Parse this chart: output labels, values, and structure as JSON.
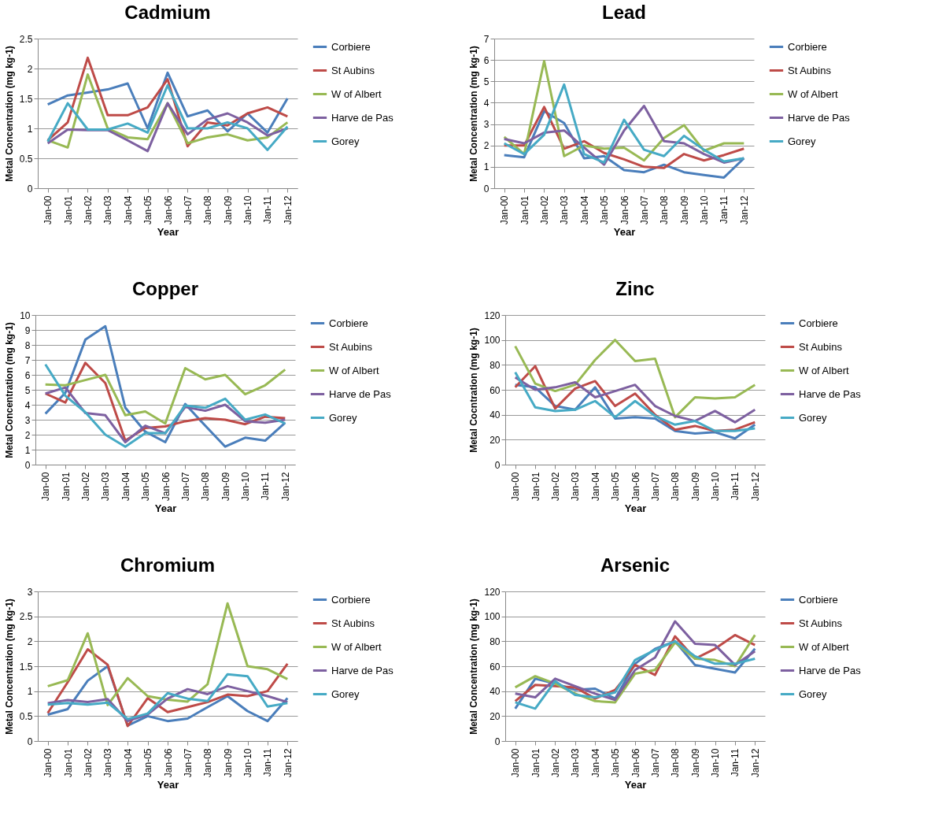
{
  "chart_data": [
    {
      "type": "line",
      "title": "Cadmium",
      "xlabel": "Year",
      "ylabel": "Metal Concentration (mg kg-1)",
      "categories": [
        "Jan-00",
        "Jan-01",
        "Jan-02",
        "Jan-03",
        "Jan-04",
        "Jan-05",
        "Jan-06",
        "Jan-07",
        "Jan-08",
        "Jan-09",
        "Jan-10",
        "Jan-11",
        "Jan-12"
      ],
      "ylim": [
        0,
        2.5
      ],
      "yticks": [
        0,
        0.5,
        1,
        1.5,
        2,
        2.5
      ],
      "grid": "y",
      "legend": "right",
      "series": [
        {
          "name": "Corbiere",
          "color": "#4a7ebb",
          "values": [
            1.4,
            1.55,
            1.6,
            1.65,
            1.75,
            1.0,
            1.93,
            1.2,
            1.3,
            0.95,
            1.25,
            0.93,
            1.5
          ]
        },
        {
          "name": "St Aubins",
          "color": "#be4b48",
          "values": [
            0.8,
            1.1,
            2.18,
            1.22,
            1.22,
            1.35,
            1.82,
            0.7,
            1.1,
            1.05,
            1.25,
            1.35,
            1.2
          ]
        },
        {
          "name": "W of Albert",
          "color": "#98b954",
          "values": [
            0.8,
            0.68,
            1.9,
            1.0,
            0.85,
            0.82,
            1.42,
            0.75,
            0.85,
            0.9,
            0.8,
            0.85,
            1.1
          ]
        },
        {
          "name": "Harve de Pas",
          "color": "#7d60a0",
          "values": [
            0.75,
            0.98,
            0.97,
            0.97,
            0.8,
            0.62,
            1.42,
            0.9,
            1.15,
            1.25,
            1.1,
            0.88,
            1.0
          ]
        },
        {
          "name": "Gorey",
          "color": "#46aac5",
          "values": [
            0.78,
            1.42,
            0.98,
            0.98,
            1.08,
            0.93,
            1.72,
            1.0,
            1.0,
            1.1,
            1.0,
            0.64,
            1.03
          ]
        }
      ]
    },
    {
      "type": "line",
      "title": "Lead",
      "xlabel": "Year",
      "ylabel": "Metal Concentration (mg kg-1)",
      "categories": [
        "Jan-00",
        "Jan-01",
        "Jan-02",
        "Jan-03",
        "Jan-04",
        "Jan-05",
        "Jan-06",
        "Jan-07",
        "Jan-08",
        "Jan-09",
        "Jan-10",
        "Jan-11",
        "Jan-12"
      ],
      "ylim": [
        0,
        7
      ],
      "yticks": [
        0,
        1,
        2,
        3,
        4,
        5,
        6,
        7
      ],
      "grid": "y",
      "legend": "right",
      "series": [
        {
          "name": "Corbiere",
          "color": "#4a7ebb",
          "values": [
            1.55,
            1.45,
            3.6,
            3.05,
            1.4,
            1.5,
            0.85,
            0.75,
            1.1,
            0.75,
            0.62,
            0.5,
            1.4
          ]
        },
        {
          "name": "St Aubins",
          "color": "#be4b48",
          "values": [
            2.0,
            2.0,
            3.8,
            1.85,
            2.2,
            1.65,
            1.35,
            1.0,
            0.95,
            1.6,
            1.3,
            1.55,
            1.85
          ]
        },
        {
          "name": "W of Albert",
          "color": "#98b954",
          "values": [
            2.4,
            1.6,
            5.95,
            1.5,
            2.0,
            1.85,
            1.9,
            1.3,
            2.35,
            2.95,
            1.75,
            2.1,
            2.1
          ]
        },
        {
          "name": "Harve de Pas",
          "color": "#7d60a0",
          "values": [
            2.3,
            2.1,
            2.6,
            2.7,
            1.9,
            1.1,
            2.7,
            3.85,
            2.2,
            2.1,
            1.6,
            1.2,
            1.4
          ]
        },
        {
          "name": "Gorey",
          "color": "#46aac5",
          "values": [
            2.1,
            1.6,
            2.5,
            4.85,
            1.6,
            1.2,
            3.2,
            1.8,
            1.5,
            2.45,
            1.8,
            1.25,
            1.4
          ]
        }
      ]
    },
    {
      "type": "line",
      "title": "Copper",
      "xlabel": "Year",
      "ylabel": "Metal Concentration (mg kg-1)",
      "categories": [
        "Jan-00",
        "Jan-01",
        "Jan-02",
        "Jan-03",
        "Jan-04",
        "Jan-05",
        "Jan-06",
        "Jan-07",
        "Jan-08",
        "Jan-09",
        "Jan-10",
        "Jan-11",
        "Jan-12"
      ],
      "ylim": [
        0,
        10
      ],
      "yticks": [
        0,
        1,
        2,
        3,
        4,
        5,
        6,
        7,
        8,
        9,
        10
      ],
      "grid": "y",
      "legend": "right",
      "series": [
        {
          "name": "Corbiere",
          "color": "#4a7ebb",
          "values": [
            3.4,
            4.8,
            8.35,
            9.25,
            3.8,
            2.2,
            1.5,
            4.05,
            2.6,
            1.2,
            1.8,
            1.6,
            2.8
          ]
        },
        {
          "name": "St Aubins",
          "color": "#be4b48",
          "values": [
            4.75,
            4.15,
            6.8,
            5.45,
            1.6,
            2.45,
            2.55,
            2.9,
            3.1,
            3.0,
            2.7,
            3.2,
            3.1
          ]
        },
        {
          "name": "W of Albert",
          "color": "#98b954",
          "values": [
            5.35,
            5.3,
            5.65,
            6.0,
            3.3,
            3.55,
            2.75,
            6.45,
            5.7,
            6.0,
            4.7,
            5.3,
            6.35
          ]
        },
        {
          "name": "Harve de Pas",
          "color": "#7d60a0",
          "values": [
            4.75,
            5.15,
            3.45,
            3.3,
            1.5,
            2.6,
            2.1,
            3.85,
            3.6,
            4.0,
            2.9,
            2.8,
            3.0
          ]
        },
        {
          "name": "Gorey",
          "color": "#46aac5",
          "values": [
            6.7,
            4.6,
            3.5,
            2.0,
            1.2,
            2.1,
            2.1,
            3.95,
            3.8,
            4.4,
            3.0,
            3.35,
            2.75
          ]
        }
      ]
    },
    {
      "type": "line",
      "title": "Zinc",
      "xlabel": "Year",
      "ylabel": "Metal Cocntration (mg kg-1)",
      "categories": [
        "Jan-00",
        "Jan-01",
        "Jan-02",
        "Jan-03",
        "Jan-04",
        "Jan-05",
        "Jan-06",
        "Jan-07",
        "Jan-08",
        "Jan-09",
        "Jan-10",
        "Jan-11",
        "Jan-12"
      ],
      "ylim": [
        0,
        120
      ],
      "yticks": [
        0,
        20,
        40,
        60,
        80,
        100,
        120
      ],
      "grid": "y",
      "legend": "right",
      "series": [
        {
          "name": "Corbiere",
          "color": "#4a7ebb",
          "values": [
            64,
            62,
            47,
            44,
            62,
            37,
            38,
            37,
            27,
            25,
            26,
            21,
            32
          ]
        },
        {
          "name": "St Aubins",
          "color": "#be4b48",
          "values": [
            62,
            79,
            45,
            61,
            67,
            47,
            57,
            40,
            28,
            31,
            27,
            28,
            34
          ]
        },
        {
          "name": "W of Albert",
          "color": "#98b954",
          "values": [
            95,
            65,
            59,
            64,
            84,
            100,
            83,
            85,
            38,
            54,
            53,
            54,
            64
          ]
        },
        {
          "name": "Harve de Pas",
          "color": "#7d60a0",
          "values": [
            70,
            60,
            62,
            66,
            54,
            59,
            64,
            47,
            39,
            35,
            43,
            34,
            44
          ]
        },
        {
          "name": "Gorey",
          "color": "#46aac5",
          "values": [
            74,
            46,
            43,
            44,
            51,
            38,
            51,
            39,
            32,
            35,
            27,
            27,
            29
          ]
        }
      ]
    },
    {
      "type": "line",
      "title": "Chromium",
      "xlabel": "Year",
      "ylabel": "Metal Concentration (mg kg-1)",
      "categories": [
        "Jan-00",
        "Jan-01",
        "Jan-02",
        "Jan-03",
        "Jan-04",
        "Jan-05",
        "Jan-06",
        "Jan-07",
        "Jan-08",
        "Jan-09",
        "Jan-10",
        "Jan-11",
        "Jan-12"
      ],
      "ylim": [
        0,
        3
      ],
      "yticks": [
        0,
        0.5,
        1,
        1.5,
        2,
        2.5,
        3
      ],
      "grid": "y",
      "legend": "right",
      "series": [
        {
          "name": "Corbiere",
          "color": "#4a7ebb",
          "values": [
            0.53,
            0.64,
            1.21,
            1.5,
            0.31,
            0.5,
            0.4,
            0.45,
            0.68,
            0.9,
            0.6,
            0.4,
            0.86
          ]
        },
        {
          "name": "St Aubins",
          "color": "#be4b48",
          "values": [
            0.56,
            1.18,
            1.84,
            1.53,
            0.3,
            0.86,
            0.58,
            0.68,
            0.78,
            0.93,
            0.9,
            1.0,
            1.55
          ]
        },
        {
          "name": "W of Albert",
          "color": "#98b954",
          "values": [
            1.1,
            1.22,
            2.16,
            0.72,
            1.26,
            0.9,
            0.83,
            0.79,
            1.14,
            2.76,
            1.5,
            1.44,
            1.24
          ]
        },
        {
          "name": "Harve de Pas",
          "color": "#7d60a0",
          "values": [
            0.76,
            0.82,
            0.78,
            0.84,
            0.4,
            0.53,
            0.85,
            1.04,
            0.94,
            1.1,
            1.0,
            0.9,
            0.78
          ]
        },
        {
          "name": "Gorey",
          "color": "#46aac5",
          "values": [
            0.73,
            0.76,
            0.73,
            0.77,
            0.44,
            0.55,
            0.96,
            0.85,
            0.8,
            1.34,
            1.3,
            0.69,
            0.76
          ]
        }
      ]
    },
    {
      "type": "line",
      "title": "Arsenic",
      "xlabel": "Year",
      "ylabel": "Metal Concentration (mg kg-1)",
      "categories": [
        "Jan-00",
        "Jan-01",
        "Jan-02",
        "Jan-03",
        "Jan-04",
        "Jan-05",
        "Jan-06",
        "Jan-07",
        "Jan-08",
        "Jan-09",
        "Jan-10",
        "Jan-11",
        "Jan-12"
      ],
      "ylim": [
        0,
        120
      ],
      "yticks": [
        0,
        20,
        40,
        60,
        80,
        100,
        120
      ],
      "grid": "y",
      "legend": "right",
      "series": [
        {
          "name": "Corbiere",
          "color": "#4a7ebb",
          "values": [
            26,
            50,
            46,
            41,
            42,
            34,
            62,
            74,
            80,
            61,
            58,
            55,
            74
          ]
        },
        {
          "name": "St Aubins",
          "color": "#be4b48",
          "values": [
            32,
            45,
            44,
            43,
            34,
            41,
            61,
            53,
            84,
            66,
            74,
            85,
            77
          ]
        },
        {
          "name": "W of Albert",
          "color": "#98b954",
          "values": [
            43,
            52,
            46,
            38,
            32,
            31,
            54,
            57,
            79,
            66,
            65,
            60,
            85
          ]
        },
        {
          "name": "Harve de Pas",
          "color": "#7d60a0",
          "values": [
            38,
            35,
            50,
            44,
            38,
            33,
            57,
            67,
            96,
            78,
            77,
            61,
            72
          ]
        },
        {
          "name": "Gorey",
          "color": "#46aac5",
          "values": [
            31,
            26,
            48,
            37,
            35,
            39,
            65,
            73,
            80,
            68,
            62,
            62,
            66
          ]
        }
      ]
    }
  ]
}
